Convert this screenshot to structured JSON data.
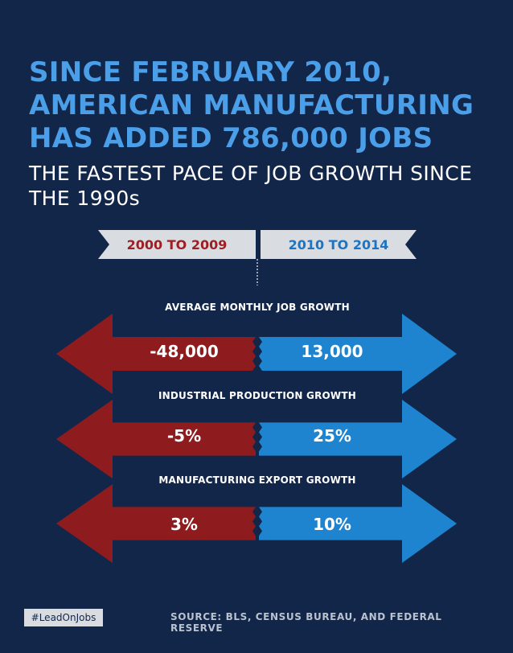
{
  "headline": "SINCE FEBRUARY 2010, AMERICAN MANUFACTURING HAS ADDED 786,000 JOBS",
  "subheadline": "THE FASTEST PACE OF JOB GROWTH SINCE THE 1990s",
  "periods": {
    "left": "2000 TO 2009",
    "right": "2010 TO 2014"
  },
  "metrics": [
    {
      "label": "AVERAGE MONTHLY JOB GROWTH",
      "left": "-48,000",
      "right": "13,000"
    },
    {
      "label": "INDUSTRIAL PRODUCTION GROWTH",
      "left": "-5%",
      "right": "25%"
    },
    {
      "label": "MANUFACTURING EXPORT GROWTH",
      "left": "3%",
      "right": "10%"
    }
  ],
  "hashtag": "#LeadOnJobs",
  "source": "SOURCE: BLS, CENSUS BUREAU, AND FEDERAL RESERVE",
  "colors": {
    "background": "#12264a",
    "headline": "#4b9fe8",
    "red": "#8e1c1f",
    "blue": "#1e84cf",
    "ribbon": "#d9dde2"
  }
}
